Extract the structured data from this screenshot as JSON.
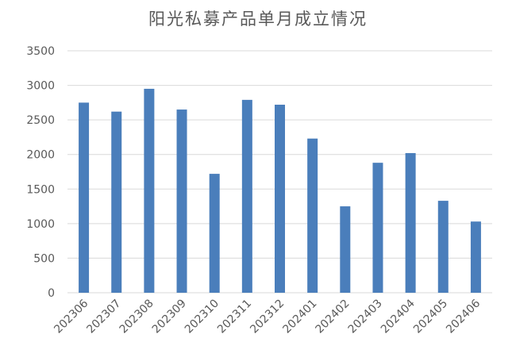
{
  "chart_data": {
    "type": "bar",
    "title": "阳光私募产品单月成立情况",
    "xlabel": "",
    "ylabel": "",
    "categories": [
      "202306",
      "202307",
      "202308",
      "202309",
      "202310",
      "202311",
      "202312",
      "202401",
      "202402",
      "202403",
      "202404",
      "202405",
      "202406"
    ],
    "values": [
      2750,
      2620,
      2950,
      2650,
      1720,
      2790,
      2720,
      2230,
      1250,
      1880,
      2020,
      1330,
      1030
    ],
    "ylim": [
      0,
      3500
    ],
    "yticks": [
      0,
      500,
      1000,
      1500,
      2000,
      2500,
      3000,
      3500
    ],
    "grid": true,
    "legend": "none",
    "bar_color": "#4a7ebb",
    "grid_color": "#d9d9d9"
  }
}
